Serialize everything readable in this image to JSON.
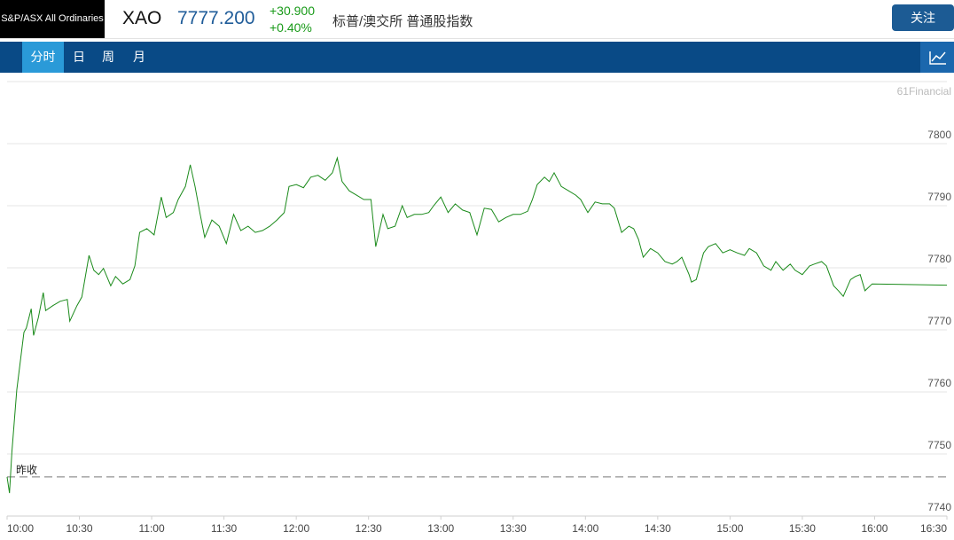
{
  "header": {
    "badge": "S&P/ASX All Ordinaries",
    "symbol": "XAO",
    "price": "7777.200",
    "change": "+30.900",
    "change_percent": "+0.40%",
    "name": "标普/澳交所 普通股指数",
    "follow_button": "关注"
  },
  "tabs": [
    "分时",
    "日",
    "周",
    "月"
  ],
  "watermark": "61Financial",
  "chart_data": {
    "type": "line",
    "color": "#1a8a1a",
    "x": [
      "10:00",
      "10:01",
      "10:02",
      "10:04",
      "10:07",
      "10:08",
      "10:10",
      "10:11",
      "10:13",
      "10:15",
      "10:16",
      "10:19",
      "10:22",
      "10:25",
      "10:26",
      "10:29",
      "10:31",
      "10:34",
      "10:36",
      "10:38",
      "10:40",
      "10:43",
      "10:45",
      "10:48",
      "10:51",
      "10:53",
      "10:55",
      "10:58",
      "11:01",
      "11:04",
      "11:06",
      "11:09",
      "11:11",
      "11:14",
      "11:16",
      "11:18",
      "11:20",
      "11:22",
      "11:25",
      "11:28",
      "11:31",
      "11:34",
      "11:37",
      "11:40",
      "11:43",
      "11:46",
      "11:49",
      "11:52",
      "11:55",
      "11:57",
      "12:00",
      "12:03",
      "12:06",
      "12:09",
      "12:12",
      "12:15",
      "12:17",
      "12:19",
      "12:22",
      "12:25",
      "12:28",
      "12:31",
      "12:33",
      "12:36",
      "12:38",
      "12:41",
      "12:44",
      "12:46",
      "12:49",
      "12:52",
      "12:55",
      "12:57",
      "13:00",
      "13:03",
      "13:06",
      "13:09",
      "13:12",
      "13:15",
      "13:18",
      "13:21",
      "13:24",
      "13:27",
      "13:30",
      "13:33",
      "13:36",
      "13:38",
      "13:40",
      "13:43",
      "13:45",
      "13:47",
      "13:50",
      "13:53",
      "13:56",
      "13:58",
      "14:01",
      "14:04",
      "14:07",
      "14:10",
      "14:12",
      "14:15",
      "14:18",
      "14:20",
      "14:22",
      "14:24",
      "14:27",
      "14:30",
      "14:33",
      "14:36",
      "14:38",
      "14:40",
      "14:43",
      "14:44",
      "14:46",
      "14:49",
      "14:51",
      "14:54",
      "14:57",
      "15:00",
      "15:03",
      "15:06",
      "15:08",
      "15:11",
      "15:14",
      "15:17",
      "15:19",
      "15:22",
      "15:25",
      "15:27",
      "15:30",
      "15:33",
      "15:35",
      "15:38",
      "15:40",
      "15:43",
      "15:45",
      "15:47",
      "15:50",
      "15:52",
      "15:54",
      "15:56",
      "15:59",
      "16:30"
    ],
    "values": [
      7746.3,
      7743.7,
      7750.3,
      7760.3,
      7769.6,
      7770.3,
      7773.4,
      7769.1,
      7772.0,
      7776.0,
      7773.1,
      7773.9,
      7774.6,
      7774.9,
      7771.4,
      7773.9,
      7775.3,
      7782.0,
      7779.6,
      7778.9,
      7779.9,
      7777.1,
      7778.6,
      7777.4,
      7778.1,
      7780.3,
      7785.7,
      7786.3,
      7785.3,
      7791.4,
      7788.1,
      7788.9,
      7791.0,
      7793.1,
      7796.6,
      7793.1,
      7788.9,
      7784.9,
      7787.7,
      7786.7,
      7783.9,
      7788.6,
      7786.0,
      7786.7,
      7785.7,
      7786.0,
      7786.7,
      7787.7,
      7788.9,
      7793.1,
      7793.4,
      7792.9,
      7794.6,
      7794.9,
      7794.1,
      7795.3,
      7797.7,
      7793.9,
      7792.4,
      7791.7,
      7791.0,
      7791.0,
      7783.4,
      7788.6,
      7786.3,
      7786.7,
      7790.0,
      7788.1,
      7788.6,
      7788.6,
      7788.9,
      7790.0,
      7791.4,
      7788.9,
      7790.3,
      7789.3,
      7788.9,
      7785.3,
      7789.6,
      7789.4,
      7787.4,
      7788.1,
      7788.6,
      7788.6,
      7789.1,
      7791.0,
      7793.4,
      7794.6,
      7793.9,
      7795.3,
      7793.1,
      7792.4,
      7791.7,
      7791.0,
      7788.9,
      7790.6,
      7790.3,
      7790.3,
      7789.6,
      7785.7,
      7786.7,
      7786.3,
      7784.6,
      7781.7,
      7783.1,
      7782.4,
      7781.0,
      7780.6,
      7781.0,
      7781.7,
      7778.9,
      7777.7,
      7778.1,
      7782.4,
      7783.4,
      7783.9,
      7782.4,
      7782.9,
      7782.4,
      7782.0,
      7783.1,
      7782.4,
      7780.3,
      7779.6,
      7781.0,
      7779.6,
      7780.6,
      7779.6,
      7778.9,
      7780.3,
      7780.6,
      7781.0,
      7780.3,
      7777.1,
      7776.3,
      7775.4,
      7778.1,
      7778.6,
      7778.9,
      7776.3,
      7777.4,
      7777.2
    ],
    "xlim": [
      "10:00",
      "16:30"
    ],
    "xticks": [
      "10:00",
      "10:30",
      "11:00",
      "11:30",
      "12:00",
      "12:30",
      "13:00",
      "13:30",
      "14:00",
      "14:30",
      "15:00",
      "15:30",
      "16:00",
      "16:30"
    ],
    "ylim": [
      7740,
      7810
    ],
    "yticks": [
      7740,
      7750,
      7760,
      7770,
      7780,
      7790,
      7800
    ],
    "grid": true,
    "reference_line": {
      "label": "昨收",
      "value": 7746.3,
      "color": "#777777"
    }
  }
}
